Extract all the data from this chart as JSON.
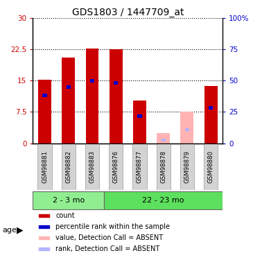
{
  "title": "GDS1803 / 1447709_at",
  "samples": [
    "GSM98881",
    "GSM98882",
    "GSM98883",
    "GSM98876",
    "GSM98877",
    "GSM98878",
    "GSM98879",
    "GSM98880"
  ],
  "red_values": [
    15.2,
    20.5,
    22.8,
    22.5,
    10.3,
    0.0,
    0.0,
    13.7
  ],
  "blue_values": [
    11.5,
    13.5,
    15.0,
    14.5,
    6.5,
    0.0,
    0.0,
    8.5
  ],
  "pink_values": [
    0.0,
    0.0,
    0.0,
    0.0,
    0.0,
    2.5,
    7.5,
    0.0
  ],
  "lightblue_values": [
    0.0,
    0.0,
    0.0,
    0.0,
    0.0,
    0.8,
    3.2,
    0.0
  ],
  "group1_count": 3,
  "group1_label": "2 - 3 mo",
  "group2_label": "22 - 23 mo",
  "group_color1": "#90ee90",
  "group_color2": "#5de05d",
  "ylim_left": [
    0,
    30
  ],
  "ylim_right": [
    0,
    100
  ],
  "yticks_left": [
    0,
    7.5,
    15,
    22.5,
    30
  ],
  "yticks_right": [
    0,
    25,
    50,
    75,
    100
  ],
  "red_color": "#cc0000",
  "blue_color": "#0000cc",
  "pink_color": "#ffb3b3",
  "lightblue_color": "#b3b3ff",
  "bar_width": 0.55,
  "blue_bar_width": 0.18,
  "bar_bg_color": "#d3d3d3",
  "age_label": "age"
}
